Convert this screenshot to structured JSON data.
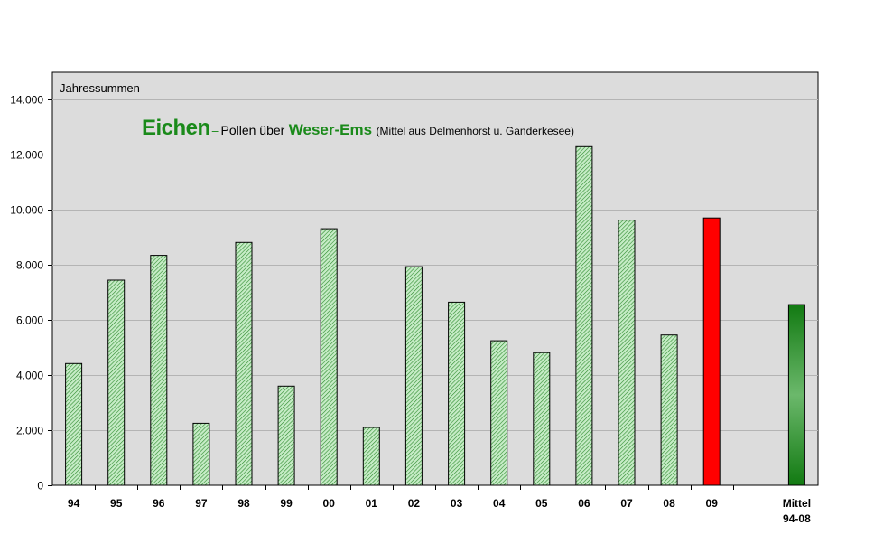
{
  "chart_data": {
    "type": "bar",
    "subtitle": "Jahressummen",
    "title_parts": {
      "eichen": "Eichen",
      "dash": "–",
      "pollen": "Pollen über",
      "region": "Weser-Ems",
      "note": "(Mittel aus Delmenhorst u. Ganderkesee)"
    },
    "categories": [
      "94",
      "95",
      "96",
      "97",
      "98",
      "99",
      "00",
      "01",
      "02",
      "03",
      "04",
      "05",
      "06",
      "07",
      "08",
      "09",
      "",
      "Mittel"
    ],
    "category_sublabel": {
      "Mittel": "94-08"
    },
    "values": [
      4420,
      7450,
      8350,
      2250,
      8820,
      3600,
      9320,
      2100,
      7940,
      6650,
      5250,
      4820,
      12300,
      9630,
      5460,
      9710,
      null,
      6560
    ],
    "bar_styles": [
      "hatched",
      "hatched",
      "hatched",
      "hatched",
      "hatched",
      "hatched",
      "hatched",
      "hatched",
      "hatched",
      "hatched",
      "hatched",
      "hatched",
      "hatched",
      "hatched",
      "hatched",
      "highlight",
      null,
      "mean"
    ],
    "ylim": [
      0,
      15000
    ],
    "yticks": [
      0,
      2000,
      4000,
      6000,
      8000,
      10000,
      12000,
      14000
    ],
    "ytick_labels": [
      "0",
      "2.000",
      "4.000",
      "6.000",
      "8.000",
      "10.000",
      "12.000",
      "14.000"
    ],
    "grid": true,
    "colors": {
      "plot_bg": "#dcdcdc",
      "grid": "#b4b4b4",
      "hatch_light": "#c6ecc6",
      "hatch_dark": "#2e8a2e",
      "highlight": "#ff0000",
      "mean_dark": "#127a12",
      "mean_light": "#6bb86b",
      "title_green": "#1a8a1a"
    }
  }
}
